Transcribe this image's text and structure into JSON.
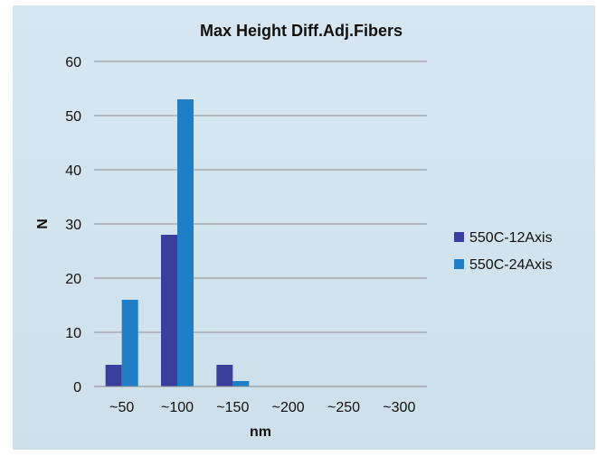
{
  "chart_data": {
    "type": "bar",
    "title": "Max Height Diff.Adj.Fibers",
    "xlabel": "nm",
    "ylabel": "N",
    "categories": [
      "~50",
      "~100",
      "~150",
      "~200",
      "~250",
      "~300"
    ],
    "series": [
      {
        "name": "550C-12Axis",
        "values": [
          4,
          28,
          4,
          0,
          0,
          0
        ],
        "color": "#3a3f9e"
      },
      {
        "name": "550C-24Axis",
        "values": [
          16,
          53,
          1,
          0,
          0,
          0
        ],
        "color": "#1f7fc6"
      }
    ],
    "ylim": [
      0,
      60
    ],
    "yticks": [
      0,
      10,
      20,
      30,
      40,
      50,
      60
    ],
    "grid": true,
    "legend": "right",
    "background": "#cfe3ee"
  }
}
